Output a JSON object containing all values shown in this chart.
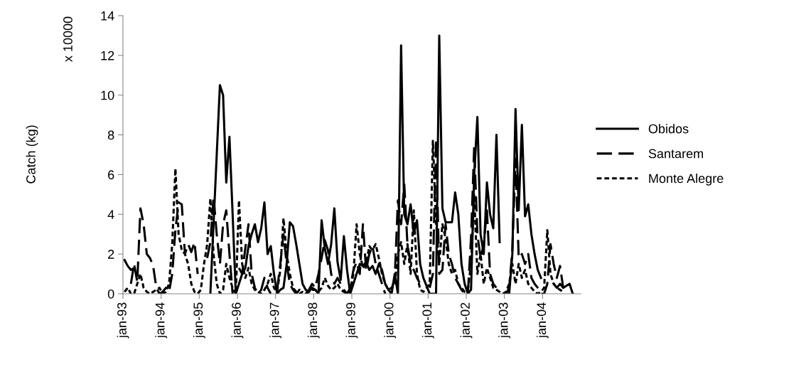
{
  "chart_data": {
    "type": "line",
    "ylabel": "Catch (kg)",
    "annotations": [
      "x 10000"
    ],
    "categories": [
      "jan-93",
      null,
      null,
      null,
      null,
      null,
      null,
      null,
      null,
      null,
      null,
      null,
      "jan-94",
      null,
      null,
      null,
      null,
      null,
      null,
      null,
      null,
      null,
      null,
      null,
      "jan-95",
      null,
      null,
      null,
      null,
      null,
      null,
      null,
      null,
      null,
      null,
      null,
      "jan-96",
      null,
      null,
      null,
      null,
      null,
      null,
      null,
      null,
      null,
      null,
      null,
      "jan-97",
      null,
      null,
      null,
      null,
      null,
      null,
      null,
      null,
      null,
      null,
      null,
      "jan-98",
      null,
      null,
      null,
      null,
      null,
      null,
      null,
      null,
      null,
      null,
      null,
      "jan-99",
      null,
      null,
      null,
      null,
      null,
      null,
      null,
      null,
      null,
      null,
      null,
      "jan-00",
      null,
      null,
      null,
      null,
      null,
      null,
      null,
      null,
      null,
      null,
      null,
      "jan-01",
      null,
      null,
      null,
      null,
      null,
      null,
      null,
      null,
      null,
      null,
      null,
      "jan-02",
      null,
      null,
      null,
      null,
      null,
      null,
      null,
      null,
      null,
      null,
      null,
      "jan-03",
      null,
      null,
      null,
      null,
      null,
      null,
      null,
      null,
      null,
      null,
      null,
      "jan-04",
      null,
      null,
      null,
      null,
      null,
      null,
      null,
      null,
      null,
      null,
      null
    ],
    "series": [
      {
        "name": "Obidos",
        "color": "#000000",
        "line_style": "solid",
        "values": [
          1.7,
          1.4,
          1.2,
          1.3,
          null,
          null,
          null,
          null,
          null,
          null,
          null,
          null,
          null,
          null,
          null,
          null,
          null,
          null,
          null,
          null,
          null,
          null,
          null,
          null,
          null,
          null,
          null,
          0,
          3.5,
          7,
          10.5,
          10.0,
          5.6,
          7.9,
          4,
          0,
          0.5,
          1.0,
          1.3,
          2.4,
          3.0,
          3.5,
          2.6,
          3.3,
          4.6,
          2.0,
          2.4,
          1.0,
          0,
          0.2,
          0.3,
          1.5,
          3.6,
          3.4,
          2.5,
          1.5,
          0.5,
          0.2,
          0.1,
          0.3,
          0.2,
          0,
          3.7,
          2.3,
          1.5,
          2.5,
          4.3,
          1.6,
          0.7,
          2.9,
          1.2,
          0,
          0.5,
          1.0,
          1.5,
          1.4,
          1.6,
          1.2,
          1.4,
          1.0,
          1.5,
          1.2,
          0.5,
          0.2,
          0,
          1.0,
          0,
          12.5,
          4.0,
          3.5,
          4.5,
          3.0,
          3.7,
          1.5,
          0.8,
          0.4,
          0,
          0,
          0,
          13.0,
          4.3,
          3.6,
          3.6,
          3.6,
          5.1,
          4.0,
          1.5,
          0.5,
          0,
          0.2,
          6.0,
          8.9,
          3.0,
          2.0,
          5.6,
          4.0,
          3.3,
          8.0,
          2.6,
          null,
          0,
          0,
          2.0,
          9.3,
          4.2,
          8.5,
          3.9,
          4.5,
          3.0,
          2.0,
          1.2,
          0.8,
          null,
          null,
          null,
          0.5,
          0.3,
          0.5,
          0.3,
          0.4,
          0.5,
          0,
          null,
          null
        ]
      },
      {
        "name": "Santarem",
        "color": "#000000",
        "line_style": "dashed",
        "values": [
          null,
          null,
          0.5,
          1.5,
          0.6,
          4.3,
          3.5,
          2.0,
          1.8,
          1.4,
          0.3,
          0,
          0.1,
          0.3,
          0.1,
          1.0,
          3.2,
          4.6,
          4.5,
          2.0,
          2.5,
          2.1,
          2.6,
          1.0,
          null,
          null,
          1.8,
          2.6,
          4.9,
          3.0,
          1.5,
          3.5,
          4.2,
          2.0,
          0,
          null,
          1.3,
          1.0,
          2.3,
          3.5,
          1.0,
          0.3,
          0,
          0.2,
          0.8,
          0.3,
          0,
          null,
          0.2,
          1.5,
          3.0,
          1.5,
          0.5,
          0.2,
          0,
          0.2,
          0.1,
          0,
          0.2,
          0.5,
          0.3,
          1.0,
          1.8,
          2.7,
          2.2,
          1.0,
          0.5,
          0.8,
          0.5,
          0.2,
          0,
          0.3,
          1.2,
          1.6,
          1.0,
          3.5,
          1.2,
          2.0,
          2.4,
          1.5,
          1.0,
          0.5,
          0,
          null,
          0.2,
          0.8,
          4.7,
          3.5,
          5.5,
          2.5,
          1.5,
          1.2,
          0.8,
          0.5,
          null,
          null,
          0.3,
          1.0,
          7.8,
          1.0,
          1.2,
          3.5,
          2.0,
          1.5,
          0.8,
          0.5,
          0.2,
          0,
          0,
          2.8,
          7.4,
          3.0,
          1.8,
          2.5,
          4.2,
          1.0,
          0.5,
          0.3,
          null,
          null,
          0,
          0.3,
          2.2,
          6.8,
          1.8,
          2.0,
          1.5,
          2.0,
          0.8,
          0.5,
          0.3,
          0,
          0,
          0.5,
          2.5,
          1.5,
          0.8,
          1.4,
          0.3,
          null,
          null,
          null,
          null,
          null
        ]
      },
      {
        "name": "Monte Alegre",
        "color": "#000000",
        "line_style": "dotted",
        "values": [
          0.1,
          0.3,
          0,
          0,
          0.5,
          1.0,
          0.3,
          0.1,
          0,
          0.1,
          0.2,
          0.3,
          0,
          0.1,
          0.5,
          2.5,
          6.3,
          3.0,
          2.2,
          2.0,
          1.5,
          0.5,
          0.1,
          0,
          0.2,
          1.5,
          2.5,
          4.8,
          2.0,
          0.5,
          0,
          0.2,
          1.5,
          0.8,
          0.3,
          0,
          4.7,
          1.5,
          0.8,
          1.3,
          0.5,
          0.2,
          0.1,
          0,
          0.2,
          0.5,
          1.0,
          0.3,
          0.1,
          1.2,
          3.8,
          2.0,
          1.0,
          0.3,
          0.1,
          0,
          0.1,
          0,
          0.1,
          0.2,
          0.2,
          0.1,
          0.3,
          0.8,
          0.4,
          0.2,
          0.3,
          0.5,
          0.2,
          0.1,
          0,
          0.2,
          1.0,
          3.5,
          2.0,
          1.3,
          1.5,
          2.4,
          2.2,
          2.5,
          1.8,
          1.0,
          0.5,
          0.2,
          0.3,
          0.5,
          2.0,
          2.6,
          1.5,
          2.5,
          1.0,
          4.2,
          1.0,
          0.2,
          0.1,
          0.3,
          0.5,
          7.7,
          3.6,
          1.5,
          3.5,
          2.8,
          1.5,
          1.0,
          1.2,
          0.5,
          0.3,
          0.1,
          0.2,
          1.5,
          5.0,
          1.0,
          2.0,
          0.5,
          1.3,
          0.8,
          0.3,
          0.2,
          0.1,
          0,
          0.1,
          0.5,
          1.5,
          0.5,
          1.5,
          0.8,
          1.2,
          0.5,
          0.3,
          0.1,
          0,
          0.1,
          0.3,
          3.2,
          1.0,
          0.5,
          0.3,
          0.2,
          0.1,
          null,
          null,
          null,
          null,
          null
        ]
      }
    ],
    "ylim": [
      0,
      14
    ],
    "yticks": [
      0,
      2,
      4,
      6,
      8,
      10,
      12,
      14
    ],
    "legend": "right"
  }
}
